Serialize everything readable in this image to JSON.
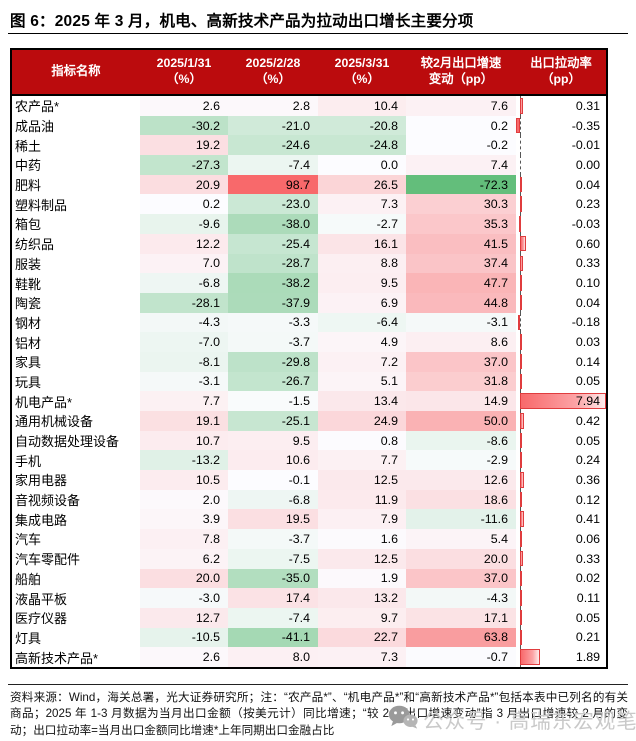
{
  "figure": {
    "source_note": "资料来源：Wind，海关总署，光大证券研究所；注：“农产品*”、“机电产品*”和“高新技术产品*”包括本表中已列名的有关商品；2025 年 1-3 月数据为当月出口金额（按美元计）同比增速；“较 2 月出口增速变动”指 3 月出口增速较 2 月的变动；出口拉动率=当月出口金额同比增速*上年同期出口金融占比",
    "watermark_text": "公众号 · 高瑞东宏观笔记"
  },
  "colors": {
    "header_bg": "#bb0b0d",
    "scale_high_red": "#f8696b",
    "scale_mid_white": "#fcfcff",
    "scale_low_green": "#63be7b",
    "databar_fill": "#f8696b",
    "databar_border": "#e03c3e"
  },
  "chart_data": {
    "type": "table",
    "title": "图 6：2025 年 3 月，机电、高新技术产品为拉动出口增长主要分项",
    "columns": [
      "指标名称",
      "2025/1/31\n（%）",
      "2025/2/28\n（%）",
      "2025/3/31\n（%）",
      "较2月出口增速\n变动（pp）",
      "出口拉动率\n（pp）"
    ],
    "conditional_format": {
      "color_scale": {
        "applies_to_columns": [
          1,
          2,
          3,
          4
        ],
        "max_value": 98.7,
        "min_value": -72.3,
        "midpoint": 0
      },
      "data_bar": {
        "applies_to_column": 5,
        "min_value": -0.35,
        "max_value": 7.94
      }
    },
    "rows": [
      {
        "name": "农产品*",
        "values": [
          2.6,
          2.8,
          10.4,
          7.6,
          0.31
        ]
      },
      {
        "name": "成品油",
        "values": [
          -30.2,
          -21.0,
          -20.8,
          0.2,
          -0.35
        ]
      },
      {
        "name": "稀土",
        "values": [
          19.2,
          -24.6,
          -24.8,
          -0.2,
          -0.01
        ]
      },
      {
        "name": "中药",
        "values": [
          -27.3,
          -7.4,
          0.0,
          7.4,
          0.0
        ]
      },
      {
        "name": "肥料",
        "values": [
          20.9,
          98.7,
          26.5,
          -72.3,
          0.04
        ]
      },
      {
        "name": "塑料制品",
        "values": [
          0.2,
          -23.0,
          7.3,
          30.3,
          0.23
        ]
      },
      {
        "name": "箱包",
        "values": [
          -9.6,
          -38.0,
          -2.7,
          35.3,
          -0.03
        ]
      },
      {
        "name": "纺织品",
        "values": [
          12.2,
          -25.4,
          16.1,
          41.5,
          0.6
        ]
      },
      {
        "name": "服装",
        "values": [
          7.0,
          -28.7,
          8.8,
          37.4,
          0.33
        ]
      },
      {
        "name": "鞋靴",
        "values": [
          -6.8,
          -38.2,
          9.5,
          47.7,
          0.1
        ]
      },
      {
        "name": "陶瓷",
        "values": [
          -28.1,
          -37.9,
          6.9,
          44.8,
          0.04
        ]
      },
      {
        "name": "钢材",
        "values": [
          -4.3,
          -3.3,
          -6.4,
          -3.1,
          -0.18
        ]
      },
      {
        "name": "铝材",
        "values": [
          -7.0,
          -3.7,
          4.9,
          8.6,
          0.03
        ]
      },
      {
        "name": "家具",
        "values": [
          -8.1,
          -29.8,
          7.2,
          37.0,
          0.14
        ]
      },
      {
        "name": "玩具",
        "values": [
          -3.1,
          -26.7,
          5.1,
          31.8,
          0.05
        ]
      },
      {
        "name": "机电产品*",
        "values": [
          7.7,
          -1.5,
          13.4,
          14.9,
          7.94
        ]
      },
      {
        "name": "通用机械设备",
        "values": [
          19.1,
          -25.1,
          24.9,
          50.0,
          0.42
        ]
      },
      {
        "name": "自动数据处理设备",
        "values": [
          10.7,
          9.5,
          0.8,
          -8.6,
          0.05
        ]
      },
      {
        "name": "手机",
        "values": [
          -13.2,
          10.6,
          7.7,
          -2.9,
          0.24
        ]
      },
      {
        "name": "家用电器",
        "values": [
          10.5,
          -0.1,
          12.5,
          12.6,
          0.36
        ]
      },
      {
        "name": "音视频设备",
        "values": [
          2.0,
          -6.8,
          11.9,
          18.6,
          0.12
        ]
      },
      {
        "name": "集成电路",
        "values": [
          3.9,
          19.5,
          7.9,
          -11.6,
          0.41
        ]
      },
      {
        "name": "汽车",
        "values": [
          7.8,
          -3.7,
          1.6,
          5.4,
          0.06
        ]
      },
      {
        "name": "汽车零配件",
        "values": [
          6.2,
          -7.5,
          12.5,
          20.0,
          0.33
        ]
      },
      {
        "name": "船舶",
        "values": [
          20.0,
          -35.0,
          1.9,
          37.0,
          0.02
        ]
      },
      {
        "name": "液晶平板",
        "values": [
          -3.0,
          17.4,
          13.2,
          -4.3,
          0.11
        ]
      },
      {
        "name": "医疗仪器",
        "values": [
          12.7,
          -7.4,
          9.7,
          17.1,
          0.05
        ]
      },
      {
        "name": "灯具",
        "values": [
          -10.5,
          -41.1,
          22.7,
          63.8,
          0.21
        ]
      },
      {
        "name": "高新技术产品*",
        "values": [
          2.6,
          8.0,
          7.3,
          -0.7,
          1.89
        ]
      }
    ]
  }
}
